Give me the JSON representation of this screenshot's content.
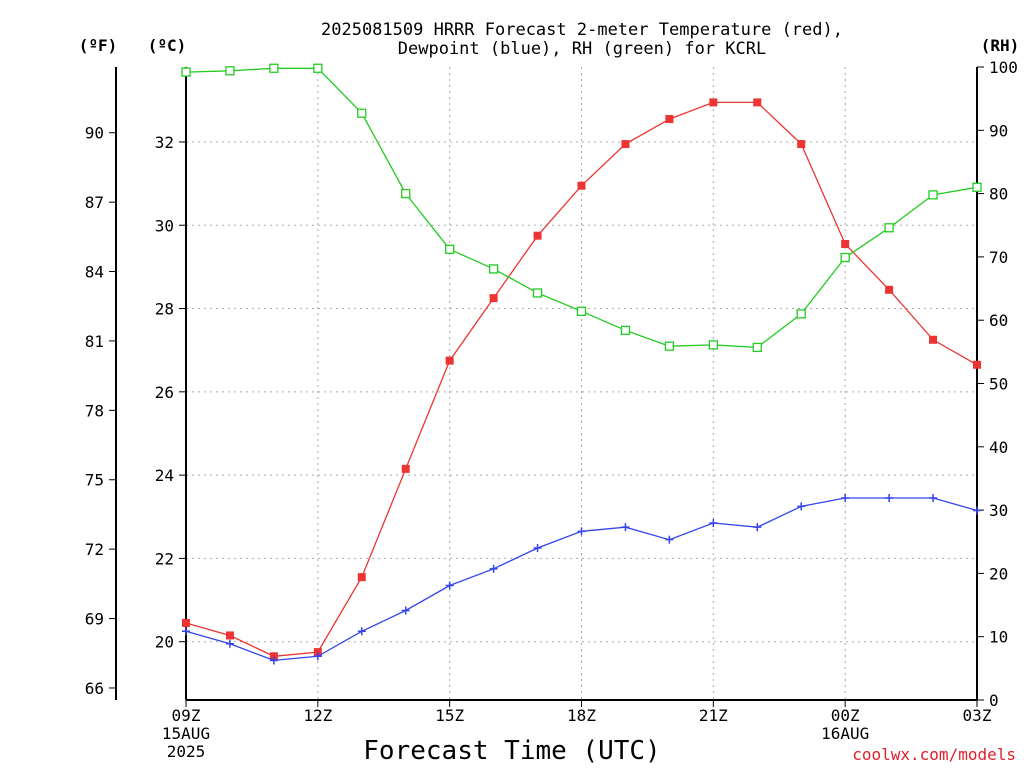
{
  "chart_data": {
    "type": "line",
    "title": "2025081509 HRRR Forecast 2-meter Temperature (red),",
    "subtitle": "Dewpoint (blue), RH (green) for KCRL",
    "xlabel": "Forecast Time (UTC)",
    "credit": "coolwx.com/models",
    "units": {
      "left_f": "(ºF)",
      "left_c": "(ºC)",
      "right": "(RH)"
    },
    "x_hours": [
      0,
      1,
      2,
      3,
      4,
      5,
      6,
      7,
      8,
      9,
      10,
      11,
      12,
      13,
      14,
      15,
      16,
      17,
      18
    ],
    "x_ticks": [
      {
        "hour": 0,
        "lines": [
          "09Z",
          "15AUG",
          "2025"
        ]
      },
      {
        "hour": 3,
        "lines": [
          "12Z"
        ]
      },
      {
        "hour": 6,
        "lines": [
          "15Z"
        ]
      },
      {
        "hour": 9,
        "lines": [
          "18Z"
        ]
      },
      {
        "hour": 12,
        "lines": [
          "21Z"
        ]
      },
      {
        "hour": 15,
        "lines": [
          "00Z",
          "16AUG"
        ]
      },
      {
        "hour": 18,
        "lines": [
          "03Z"
        ]
      }
    ],
    "y_left_c": {
      "ticks": [
        20,
        22,
        24,
        26,
        28,
        30,
        32
      ],
      "lim": [
        18.6,
        33.8
      ]
    },
    "y_left_f": {
      "ticks": [
        66,
        69,
        72,
        75,
        78,
        81,
        84,
        87,
        90
      ]
    },
    "y_right": {
      "ticks": [
        0,
        10,
        20,
        30,
        40,
        50,
        60,
        70,
        80,
        90,
        100
      ],
      "lim": [
        0,
        100
      ]
    },
    "grid": true,
    "series": [
      {
        "name": "Temperature",
        "axis": "c",
        "color": "#ee3333",
        "marker": "filled-square",
        "values": [
          20.45,
          20.15,
          19.65,
          19.75,
          21.55,
          24.15,
          26.75,
          28.25,
          29.75,
          30.95,
          31.95,
          32.55,
          32.95,
          32.95,
          31.95,
          29.55,
          28.45,
          27.25,
          26.65
        ]
      },
      {
        "name": "Dewpoint",
        "axis": "c",
        "color": "#3344ee",
        "marker": "plus",
        "values": [
          20.25,
          19.95,
          19.55,
          19.65,
          20.25,
          20.75,
          21.35,
          21.75,
          22.25,
          22.65,
          22.75,
          22.45,
          22.85,
          22.75,
          23.25,
          23.45,
          23.45,
          23.45,
          23.15
        ]
      },
      {
        "name": "RH",
        "axis": "rh",
        "color": "#22cc22",
        "marker": "open-square",
        "values": [
          99.2,
          99.4,
          99.8,
          99.8,
          92.7,
          80.0,
          71.2,
          68.1,
          64.3,
          61.4,
          58.4,
          55.9,
          56.1,
          55.7,
          61.0,
          69.9,
          74.6,
          79.8,
          81.0
        ]
      }
    ]
  }
}
